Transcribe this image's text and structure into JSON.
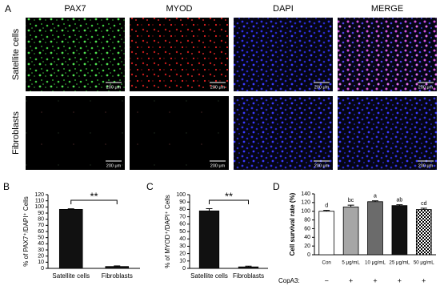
{
  "panel_labels": [
    "A",
    "B",
    "C",
    "D"
  ],
  "image_panel": {
    "columns": [
      "PAX7",
      "MYOD",
      "DAPI",
      "MERGE"
    ],
    "rows": [
      "Satellite cells",
      "Fibroblasts"
    ],
    "scale_bar": "200 μm"
  },
  "chart_data": [
    {
      "type": "bar",
      "ylabel": "% of PAX7⁺/DAPI⁺ Cells",
      "categories": [
        "Satellite cells",
        "Fibroblasts"
      ],
      "values": [
        96,
        3
      ],
      "errors": [
        1,
        1
      ],
      "color": "#111111",
      "ylim": [
        0,
        120
      ],
      "yticks": [
        0,
        10,
        20,
        30,
        40,
        50,
        60,
        70,
        80,
        90,
        100,
        110,
        120
      ],
      "annotation": "**"
    },
    {
      "type": "bar",
      "ylabel": "% of MYOD⁺/DAPI⁺ Cells",
      "categories": [
        "Satellite cells",
        "Fibroblasts"
      ],
      "values": [
        78,
        2
      ],
      "errors": [
        3,
        1
      ],
      "color": "#111111",
      "ylim": [
        0,
        100
      ],
      "yticks": [
        0,
        10,
        20,
        30,
        40,
        50,
        60,
        70,
        80,
        90,
        100
      ],
      "annotation": "**"
    },
    {
      "type": "bar",
      "ylabel": "Cell survival rate (%)",
      "categories": [
        "Con",
        "5 μg/mL",
        "10 μg/mL",
        "25 μg/mL",
        "50 μg/mL"
      ],
      "values": [
        100,
        110,
        122,
        113,
        104
      ],
      "errors": [
        2,
        4,
        2,
        2,
        3
      ],
      "colors": [
        "#ffffff",
        "#a6a6a6",
        "#6b6b6b",
        "#111111",
        "checkered"
      ],
      "significance": [
        "d",
        "bc",
        "a",
        "ab",
        "cd"
      ],
      "ylim": [
        0,
        140
      ],
      "yticks": [
        0,
        20,
        40,
        60,
        80,
        100,
        120,
        140
      ],
      "row_label": "CopA3:",
      "row_values": [
        "−",
        "+",
        "+",
        "+",
        "+"
      ]
    }
  ]
}
